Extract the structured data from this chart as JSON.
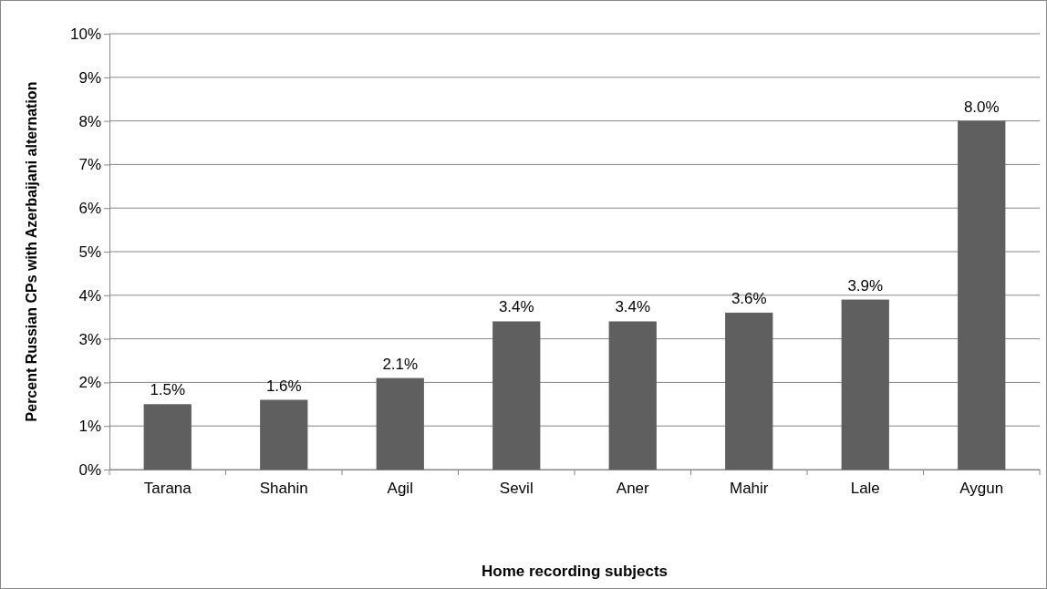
{
  "chart_data": {
    "type": "bar",
    "xlabel": "Home recording subjects",
    "ylabel": "Percent Russian CPs with Azerbaijani alternation",
    "categories": [
      "Tarana",
      "Shahin",
      "Agil",
      "Sevil",
      "Aner",
      "Mahir",
      "Lale",
      "Aygun"
    ],
    "values": [
      1.5,
      1.6,
      2.1,
      3.4,
      3.4,
      3.6,
      3.9,
      8.0
    ],
    "value_labels": [
      "1.5%",
      "1.6%",
      "2.1%",
      "3.4%",
      "3.4%",
      "3.6%",
      "3.9%",
      "8.0%"
    ],
    "color": "#5f5f5f",
    "ylim": [
      0,
      10
    ],
    "yticks": [
      {
        "value": 0,
        "label": "0%"
      },
      {
        "value": 1,
        "label": "1%"
      },
      {
        "value": 2,
        "label": "2%"
      },
      {
        "value": 3,
        "label": "3%"
      },
      {
        "value": 4,
        "label": "4%"
      },
      {
        "value": 5,
        "label": "5%"
      },
      {
        "value": 6,
        "label": "6%"
      },
      {
        "value": 7,
        "label": "7%"
      },
      {
        "value": 8,
        "label": "8%"
      },
      {
        "value": 9,
        "label": "9%"
      },
      {
        "value": 10,
        "label": "10%"
      }
    ],
    "grid": "y"
  }
}
